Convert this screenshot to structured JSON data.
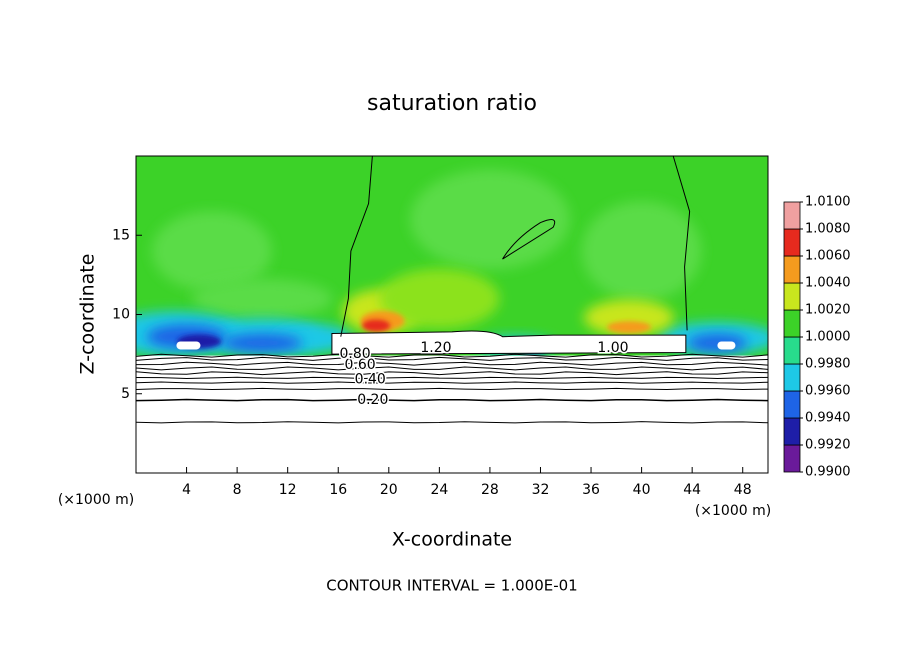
{
  "chart_data": {
    "type": "contour",
    "title": "saturation ratio",
    "x_label": "X-coordinate",
    "y_label": "Z-coordinate",
    "x_unit": "(×1000 m)",
    "y_unit": "(×1000 m)",
    "annotation": "CONTOUR INTERVAL = 1.000E-01",
    "xlim": [
      0,
      50
    ],
    "ylim": [
      0,
      20
    ],
    "xticks": [
      4,
      8,
      12,
      16,
      20,
      24,
      28,
      32,
      36,
      40,
      44,
      48
    ],
    "yticks": [
      5,
      10,
      15
    ],
    "colorbar": {
      "ticks": [
        {
          "value": 0.99,
          "label": "0.9900"
        },
        {
          "value": 0.992,
          "label": "0.9920"
        },
        {
          "value": 0.994,
          "label": "0.9940"
        },
        {
          "value": 0.996,
          "label": "0.9960"
        },
        {
          "value": 0.998,
          "label": "0.9980"
        },
        {
          "value": 1.0,
          "label": "1.0000"
        },
        {
          "value": 1.002,
          "label": "1.0020"
        },
        {
          "value": 1.004,
          "label": "1.0040"
        },
        {
          "value": 1.006,
          "label": "1.0060"
        },
        {
          "value": 1.008,
          "label": "1.0080"
        },
        {
          "value": 1.01,
          "label": "1.0100"
        }
      ],
      "colors": [
        "#6a1a9a",
        "#1e1ea8",
        "#1e64e6",
        "#1ec8e6",
        "#28dc8c",
        "#3cd228",
        "#c8e61e",
        "#f59b1e",
        "#e62a1e",
        "#f0a0a0"
      ]
    },
    "contour_labels": [
      {
        "value": 0.2,
        "label": "0.20"
      },
      {
        "value": 0.4,
        "label": "0.40"
      },
      {
        "value": 0.6,
        "label": "0.60"
      },
      {
        "value": 0.8,
        "label": "0.80"
      },
      {
        "value": 1.0,
        "label": "1.00"
      },
      {
        "value": 1.2,
        "label": "1.20"
      }
    ]
  }
}
